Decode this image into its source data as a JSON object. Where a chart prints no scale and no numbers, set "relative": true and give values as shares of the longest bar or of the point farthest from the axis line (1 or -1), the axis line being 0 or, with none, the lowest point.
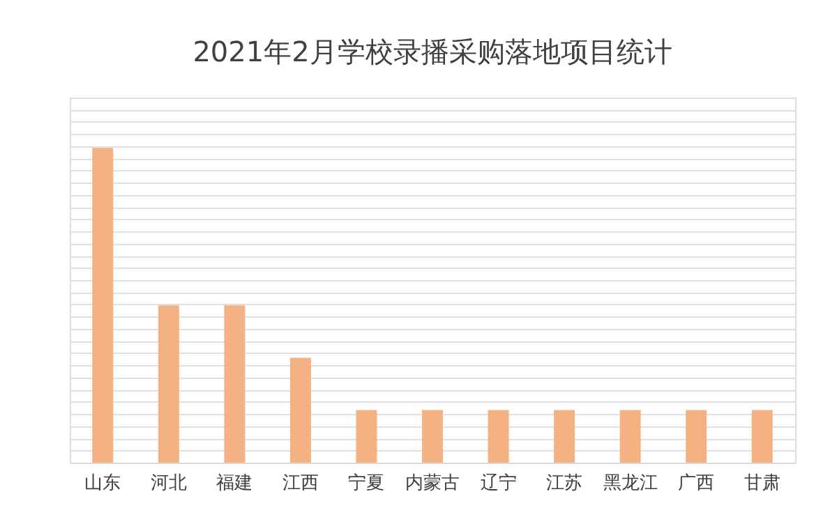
{
  "chart_data": {
    "type": "bar",
    "title": "2021年2月学校录播采购落地项目统计",
    "categories": [
      "山东",
      "河北",
      "福建",
      "江西",
      "宁夏",
      "内蒙古",
      "辽宁",
      "江苏",
      "黑龙江",
      "广西",
      "甘肃"
    ],
    "values": [
      1,
      0.5,
      0.5,
      0.333,
      0.167,
      0.167,
      0.167,
      0.167,
      0.167,
      0.167,
      0.167
    ],
    "color": "#f4b183",
    "relative": true,
    "grid": "y"
  }
}
